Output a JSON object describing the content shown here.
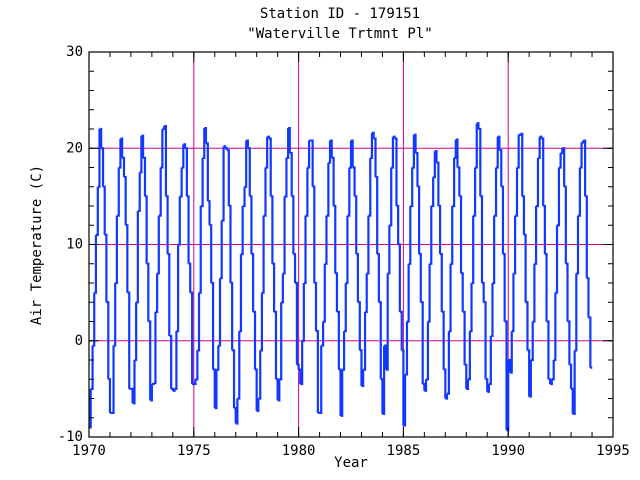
{
  "chart_data": {
    "type": "step",
    "title": "Station ID - 179151",
    "subtitle": "\"Waterville Trtmnt Pl\"",
    "x_label": "Year",
    "y_label": "Air Temperature (C)",
    "xlim": [
      1970,
      1995
    ],
    "xticks": [
      1970,
      1975,
      1980,
      1985,
      1990,
      1995
    ],
    "ylim": [
      -10,
      30
    ],
    "yticks": [
      -10,
      0,
      10,
      20,
      30
    ],
    "grid": true,
    "grid_color": "#d4008a",
    "x_grid": [
      1975,
      1980,
      1985,
      1990
    ],
    "y_grid": [
      0,
      10,
      20
    ],
    "series": [
      {
        "name": "Air Temperature",
        "color": "#1038ff",
        "x": [
          1970.0,
          1970.08,
          1970.17,
          1970.25,
          1970.33,
          1970.42,
          1970.5,
          1970.58,
          1970.67,
          1970.75,
          1970.83,
          1970.92,
          1971.0,
          1971.08,
          1971.17,
          1971.25,
          1971.33,
          1971.42,
          1971.5,
          1971.58,
          1971.67,
          1971.75,
          1971.83,
          1971.92,
          1972.0,
          1972.08,
          1972.17,
          1972.25,
          1972.33,
          1972.42,
          1972.5,
          1972.58,
          1972.67,
          1972.75,
          1972.83,
          1972.92,
          1973.0,
          1973.08,
          1973.17,
          1973.25,
          1973.33,
          1973.42,
          1973.5,
          1973.58,
          1973.67,
          1973.75,
          1973.83,
          1973.92,
          1974.0,
          1974.08,
          1974.17,
          1974.25,
          1974.33,
          1974.42,
          1974.5,
          1974.58,
          1974.67,
          1974.75,
          1974.83,
          1974.92,
          1975.0,
          1975.08,
          1975.17,
          1975.25,
          1975.33,
          1975.42,
          1975.5,
          1975.58,
          1975.67,
          1975.75,
          1975.83,
          1975.92,
          1976.0,
          1976.08,
          1976.17,
          1976.25,
          1976.33,
          1976.42,
          1976.5,
          1976.58,
          1976.67,
          1976.75,
          1976.83,
          1976.92,
          1977.0,
          1977.08,
          1977.17,
          1977.25,
          1977.33,
          1977.42,
          1977.5,
          1977.58,
          1977.67,
          1977.75,
          1977.83,
          1977.92,
          1978.0,
          1978.08,
          1978.17,
          1978.25,
          1978.33,
          1978.42,
          1978.5,
          1978.58,
          1978.67,
          1978.75,
          1978.83,
          1978.92,
          1979.0,
          1979.08,
          1979.17,
          1979.25,
          1979.33,
          1979.42,
          1979.5,
          1979.58,
          1979.67,
          1979.75,
          1979.83,
          1979.92,
          1980.0,
          1980.08,
          1980.17,
          1980.25,
          1980.33,
          1980.42,
          1980.5,
          1980.58,
          1980.67,
          1980.75,
          1980.83,
          1980.92,
          1981.0,
          1981.08,
          1981.17,
          1981.25,
          1981.33,
          1981.42,
          1981.5,
          1981.58,
          1981.67,
          1981.75,
          1981.83,
          1981.92,
          1982.0,
          1982.08,
          1982.17,
          1982.25,
          1982.33,
          1982.42,
          1982.5,
          1982.58,
          1982.67,
          1982.75,
          1982.83,
          1982.92,
          1983.0,
          1983.08,
          1983.17,
          1983.25,
          1983.33,
          1983.42,
          1983.5,
          1983.58,
          1983.67,
          1983.75,
          1983.83,
          1983.92,
          1984.0,
          1984.08,
          1984.17,
          1984.25,
          1984.33,
          1984.42,
          1984.5,
          1984.58,
          1984.67,
          1984.75,
          1984.83,
          1984.92,
          1985.0,
          1985.08,
          1985.17,
          1985.25,
          1985.33,
          1985.42,
          1985.5,
          1985.58,
          1985.67,
          1985.75,
          1985.83,
          1985.92,
          1986.0,
          1986.08,
          1986.17,
          1986.25,
          1986.33,
          1986.42,
          1986.5,
          1986.58,
          1986.67,
          1986.75,
          1986.83,
          1986.92,
          1987.0,
          1987.08,
          1987.17,
          1987.25,
          1987.33,
          1987.42,
          1987.5,
          1987.58,
          1987.67,
          1987.75,
          1987.83,
          1987.92,
          1988.0,
          1988.08,
          1988.17,
          1988.25,
          1988.33,
          1988.42,
          1988.5,
          1988.58,
          1988.67,
          1988.75,
          1988.83,
          1988.92,
          1989.0,
          1989.08,
          1989.17,
          1989.25,
          1989.33,
          1989.42,
          1989.5,
          1989.58,
          1989.67,
          1989.75,
          1989.83,
          1989.92,
          1990.0,
          1990.08,
          1990.17,
          1990.25,
          1990.33,
          1990.42,
          1990.5,
          1990.58,
          1990.67,
          1990.75,
          1990.83,
          1990.92,
          1991.0,
          1991.08,
          1991.17,
          1991.25,
          1991.33,
          1991.42,
          1991.5,
          1991.58,
          1991.67,
          1991.75,
          1991.83,
          1991.92,
          1992.0,
          1992.08,
          1992.17,
          1992.25,
          1992.33,
          1992.42,
          1992.5,
          1992.58,
          1992.67,
          1992.75,
          1992.83,
          1992.92,
          1993.0,
          1993.08,
          1993.17,
          1993.25,
          1993.33,
          1993.42,
          1993.5,
          1993.58,
          1993.67,
          1993.75,
          1993.83,
          1993.92
        ],
        "values": [
          -9,
          -5,
          -0.5,
          5,
          11,
          16,
          22,
          20,
          16,
          11,
          4,
          -4,
          -7.5,
          -7.5,
          -0.5,
          6,
          13,
          18,
          21,
          19,
          17,
          12,
          5,
          -5,
          -5,
          -6.5,
          -2,
          4,
          13.5,
          17.5,
          21.3,
          19,
          15,
          8,
          2,
          -6.2,
          -4.5,
          -4.4,
          3,
          7,
          13,
          18,
          22,
          22.3,
          15,
          9,
          0.5,
          -5,
          -5.2,
          -5,
          1,
          10,
          15,
          18,
          20.4,
          20,
          15,
          8,
          5,
          -4.5,
          -4.5,
          -4,
          -1,
          5,
          14,
          19,
          22.1,
          20.5,
          14.5,
          12,
          6,
          -3,
          -7,
          -3,
          -0.5,
          6.5,
          12.5,
          20.2,
          20,
          19.8,
          14,
          6,
          -1,
          -7,
          -8.6,
          -6,
          1,
          9,
          14,
          16,
          20.8,
          20,
          15,
          9,
          3,
          -3,
          -7.3,
          -6,
          -1,
          5,
          13,
          18,
          21.2,
          21,
          15,
          8,
          3,
          -4,
          -6.2,
          -4,
          4,
          7,
          15,
          19,
          22.1,
          19.5,
          15,
          9,
          6,
          -2.5,
          -3,
          -4.5,
          0,
          6,
          13,
          18,
          20.8,
          20.8,
          16,
          6,
          1,
          -7.5,
          -7.5,
          -0.5,
          2,
          8,
          13,
          18.5,
          20.8,
          19,
          14,
          7,
          3,
          -3,
          -7.8,
          -3,
          1,
          6,
          13,
          18,
          20.8,
          18,
          15,
          9,
          4,
          -1,
          -4.7,
          -3,
          3,
          7,
          13,
          19,
          21.6,
          21,
          17,
          9,
          4,
          -4,
          -7.6,
          -0.5,
          -3,
          7,
          12,
          18,
          21.2,
          21,
          14,
          10,
          3,
          -1,
          -8.8,
          -3.5,
          2,
          8,
          14,
          18,
          21.4,
          19.5,
          16,
          9,
          4,
          -4.5,
          -5.2,
          -4,
          2,
          8,
          14,
          17,
          19.7,
          18.5,
          14,
          9,
          3,
          -3,
          -6,
          -5.5,
          1,
          8,
          14,
          19,
          20.9,
          18,
          15,
          7,
          3,
          -2.5,
          -5,
          -4,
          1,
          6,
          13,
          18,
          22.6,
          22,
          15,
          6,
          4,
          -4,
          -5.3,
          -4.5,
          0.5,
          6,
          13,
          18,
          21.2,
          19.8,
          16,
          9,
          2,
          -9.3,
          -2,
          -3.3,
          1,
          7,
          13,
          18,
          21.4,
          21.5,
          15,
          11,
          4,
          -1,
          -5.8,
          -2,
          2,
          8,
          14,
          19,
          21.2,
          21,
          14,
          9,
          2,
          -4,
          -4.5,
          -4,
          -2,
          5,
          12,
          18,
          19.5,
          20,
          16,
          8,
          2,
          -2.5,
          -5,
          -7.6,
          -1,
          7,
          13,
          18,
          20.6,
          20.8,
          15,
          6.5,
          2.4,
          -2.8
        ]
      }
    ]
  }
}
